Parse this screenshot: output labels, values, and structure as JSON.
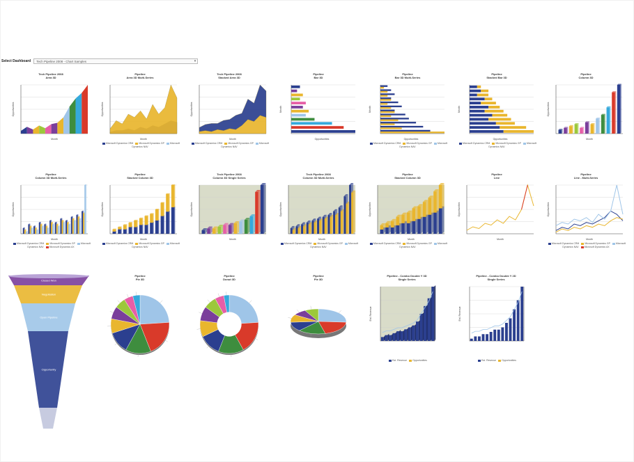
{
  "selector": {
    "label": "Select Dashboard",
    "value": "Tech Pipeline 2008 - Chart Samples"
  },
  "colors": {
    "navy": "#2b3f8f",
    "gold": "#e9b62e",
    "light_blue": "#9fc5e8",
    "red": "#d93a2a",
    "green": "#3e8d3e",
    "purple": "#7a3e9b",
    "pink": "#e65fa7",
    "cyan": "#35a9dc",
    "lime": "#9cc83b",
    "gray_bg": "#d9dcc9"
  },
  "legend_series": [
    "Microsoft Dynamics CRM",
    "Microsoft Dynamics GP",
    "Microsoft Dynamics NAV",
    "Microsoft Dynamics AX"
  ],
  "chart_data": [
    {
      "type": "area",
      "title": "Tech Pipeline 2008",
      "subtitle": "Area 3D",
      "xlabel": "Month",
      "ylabel": "Opportunities",
      "values": [
        2,
        5,
        3,
        6,
        4,
        7,
        8,
        12,
        20,
        26,
        30,
        36
      ]
    },
    {
      "type": "area",
      "title": "Pipeline",
      "subtitle": "Area 3D Multi-Series",
      "xlabel": "Month",
      "ylabel": "Opportunities",
      "series": [
        {
          "name": "Microsoft Dynamics CRM",
          "values": [
            3,
            8,
            6,
            12,
            10,
            14,
            9,
            18,
            12,
            16,
            30,
            22
          ]
        },
        {
          "name": "Microsoft Dynamics GP",
          "values": [
            1,
            2,
            2,
            3,
            2,
            4,
            3,
            5,
            4,
            6,
            8,
            7
          ]
        }
      ]
    },
    {
      "type": "area",
      "title": "Tech Pipeline 2008",
      "subtitle": "Stacked Area 3D",
      "xlabel": "Month",
      "ylabel": "Opportunities",
      "series": [
        {
          "name": "Microsoft Dynamics CRM",
          "values": [
            2,
            3,
            2,
            4,
            3,
            5,
            4,
            8,
            14,
            12,
            18,
            16
          ]
        },
        {
          "name": "Microsoft Dynamics GP",
          "values": [
            4,
            6,
            8,
            6,
            10,
            9,
            14,
            12,
            20,
            18,
            30,
            26
          ]
        }
      ]
    },
    {
      "type": "bar",
      "title": "Pipeline",
      "subtitle": "Bar 3D",
      "xlabel": "Opportunities",
      "ylabel": "Month",
      "values": [
        3,
        2,
        4,
        3,
        5,
        4,
        6,
        5,
        8,
        14,
        18,
        22
      ]
    },
    {
      "type": "bar",
      "title": "Pipeline",
      "subtitle": "Bar 3D Multi-Series",
      "xlabel": "Opportunities",
      "ylabel": "Month",
      "series": [
        {
          "name": "Microsoft Dynamics CRM",
          "values": [
            2,
            3,
            4,
            3,
            5,
            6,
            4,
            7,
            8,
            10,
            12,
            14
          ]
        },
        {
          "name": "Microsoft Dynamics GP",
          "values": [
            1,
            2,
            2,
            3,
            2,
            3,
            4,
            3,
            5,
            4,
            6,
            18
          ]
        }
      ]
    },
    {
      "type": "bar",
      "title": "Pipeline",
      "subtitle": "Stacked Bar 3D",
      "xlabel": "Opportunities",
      "ylabel": "Month",
      "series": [
        {
          "name": "Microsoft Dynamics CRM",
          "values": [
            2,
            3,
            2,
            4,
            3,
            5,
            4,
            6,
            5,
            7,
            8,
            9
          ]
        },
        {
          "name": "Microsoft Dynamics GP",
          "values": [
            1,
            2,
            3,
            2,
            4,
            3,
            5,
            4,
            6,
            5,
            7,
            8
          ]
        }
      ]
    },
    {
      "type": "bar",
      "title": "Pipeline",
      "subtitle": "Column 3D",
      "xlabel": "Month",
      "ylabel": "Opportunities",
      "values": [
        2,
        3,
        4,
        5,
        3,
        6,
        5,
        8,
        10,
        14,
        22,
        26
      ]
    },
    {
      "type": "bar",
      "title": "Pipeline",
      "subtitle": "Column 3D Multi-Series",
      "xlabel": "Month",
      "ylabel": "Opportunities",
      "series": [
        {
          "name": "Microsoft Dynamics CRM",
          "values": [
            3,
            5,
            4,
            6,
            5,
            7,
            6,
            8,
            7,
            9,
            10,
            12
          ]
        },
        {
          "name": "Microsoft Dynamics GP",
          "values": [
            2,
            4,
            3,
            5,
            4,
            6,
            5,
            7,
            6,
            8,
            9,
            11
          ]
        },
        {
          "name": "Microsoft Dynamics NAV",
          "values": [
            1,
            3,
            2,
            4,
            3,
            5,
            4,
            6,
            5,
            7,
            8,
            26
          ]
        }
      ]
    },
    {
      "type": "bar",
      "title": "Pipeline",
      "subtitle": "Stacked Column 3D",
      "xlabel": "Month",
      "ylabel": "Opportunities",
      "series": [
        {
          "name": "Microsoft Dynamics CRM",
          "values": [
            1,
            2,
            2,
            3,
            3,
            4,
            4,
            5,
            6,
            8,
            10,
            12
          ]
        },
        {
          "name": "Microsoft Dynamics GP",
          "values": [
            1,
            1,
            2,
            2,
            3,
            3,
            4,
            4,
            5,
            6,
            8,
            10
          ]
        }
      ]
    },
    {
      "type": "bar",
      "title": "Tech Pipeline 2008",
      "subtitle": "Column 3D Single Series",
      "xlabel": "Month",
      "ylabel": "Opportunities",
      "values": [
        2,
        3,
        3,
        4,
        5,
        5,
        6,
        7,
        8,
        10,
        24,
        28
      ]
    },
    {
      "type": "bar",
      "title": "Tech Pipeline 2008",
      "subtitle": "Column 3D Multi-Series",
      "xlabel": "Month",
      "ylabel": "Opportunities",
      "series": [
        {
          "name": "Microsoft Dynamics CRM",
          "values": [
            3,
            4,
            5,
            6,
            7,
            8,
            9,
            10,
            12,
            14,
            20,
            26
          ]
        },
        {
          "name": "Microsoft Dynamics GP",
          "values": [
            2,
            3,
            4,
            5,
            6,
            7,
            8,
            9,
            10,
            12,
            16,
            22
          ]
        }
      ]
    },
    {
      "type": "bar",
      "title": "Pipeline",
      "subtitle": "Stacked Column 3D",
      "xlabel": "Month",
      "ylabel": "Opportunities",
      "series": [
        {
          "name": "Microsoft Dynamics CRM",
          "values": [
            2,
            3,
            3,
            4,
            5,
            5,
            6,
            7,
            8,
            9,
            10,
            12
          ]
        },
        {
          "name": "Microsoft Dynamics GP",
          "values": [
            2,
            2,
            3,
            4,
            4,
            5,
            6,
            6,
            7,
            8,
            10,
            11
          ]
        }
      ]
    },
    {
      "type": "line",
      "title": "Pipeline",
      "subtitle": "Line",
      "xlabel": "Month",
      "ylabel": "Opportunities",
      "values": [
        2,
        4,
        3,
        6,
        5,
        8,
        6,
        10,
        8,
        14,
        28,
        16
      ]
    },
    {
      "type": "line",
      "title": "Pipeline",
      "subtitle": "Line - Multi-Series",
      "xlabel": "Month",
      "ylabel": "Opportunities",
      "series": [
        {
          "name": "Microsoft Dynamics CRM",
          "values": [
            2,
            4,
            3,
            6,
            5,
            7,
            6,
            8,
            10,
            14,
            12,
            8
          ]
        },
        {
          "name": "Microsoft Dynamics GP",
          "values": [
            5,
            7,
            6,
            9,
            8,
            10,
            7,
            12,
            9,
            14,
            30,
            12
          ]
        },
        {
          "name": "Microsoft Dynamics NAV",
          "values": [
            1,
            3,
            2,
            4,
            3,
            5,
            4,
            6,
            5,
            8,
            10,
            9
          ]
        }
      ]
    },
    {
      "type": "funnel",
      "categories": [
        "Closed Won",
        "Negotiation",
        "Open Pipeline",
        "Opportunity"
      ],
      "values": [
        8,
        12,
        20,
        60
      ]
    },
    {
      "type": "pie",
      "title": "Pipeline",
      "subtitle": "Pie 3D",
      "values": [
        24,
        20,
        14,
        12,
        8,
        7,
        6,
        5,
        4
      ]
    },
    {
      "type": "pie",
      "title": "Pipeline",
      "subtitle": "Donut 3D",
      "values": [
        24,
        18,
        14,
        12,
        9,
        8,
        7,
        5,
        3
      ]
    },
    {
      "type": "pie",
      "title": "Pipeline",
      "subtitle": "Pie 3D",
      "values": [
        26,
        20,
        16,
        12,
        10,
        8,
        8
      ]
    },
    {
      "type": "bar",
      "title": "Pipeline - Combo Double Y 3D",
      "subtitle": "Single Series",
      "xlabel": "",
      "ylabel": "Est. Revenue",
      "values": [
        2,
        3,
        3,
        4,
        5,
        5,
        6,
        7,
        8,
        10,
        14,
        18,
        22,
        28
      ]
    },
    {
      "type": "bar",
      "title": "Pipeline - Combo Double Y 2D",
      "subtitle": "Single Series",
      "xlabel": "",
      "ylabel": "Est. Revenue",
      "values": [
        1,
        2,
        2,
        3,
        3,
        4,
        5,
        5,
        6,
        8,
        10,
        14,
        18,
        24
      ]
    }
  ],
  "combo_legend": [
    "Est. Revenue",
    "Opportunities"
  ]
}
